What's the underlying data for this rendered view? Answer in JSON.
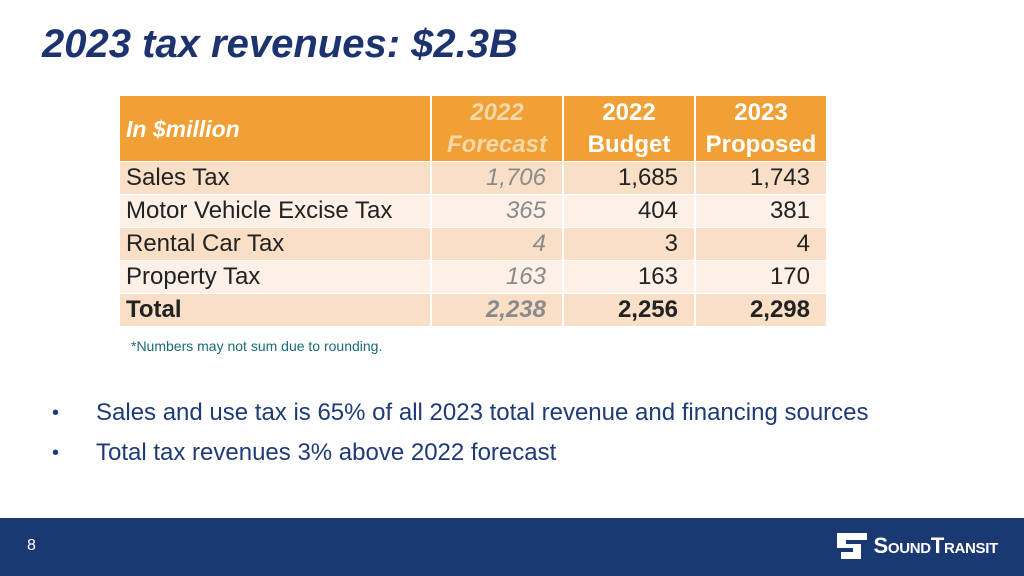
{
  "title": "2023 tax revenues: $2.3B",
  "table": {
    "header": {
      "label": "In $million",
      "col1_line1": "2022",
      "col1_line2": "Forecast",
      "col2_line1": "2022",
      "col2_line2": "Budget",
      "col3_line1": "2023",
      "col3_line2": "Proposed"
    },
    "rows": [
      {
        "name": "Sales Tax",
        "forecast": "1,706",
        "budget": "1,685",
        "proposed": "1,743"
      },
      {
        "name": "Motor Vehicle Excise Tax",
        "forecast": "365",
        "budget": "404",
        "proposed": "381"
      },
      {
        "name": "Rental Car Tax",
        "forecast": "4",
        "budget": "3",
        "proposed": "4"
      },
      {
        "name": "Property Tax",
        "forecast": "163",
        "budget": "163",
        "proposed": "170"
      },
      {
        "name": "Total",
        "forecast": "2,238",
        "budget": "2,256",
        "proposed": "2,298"
      }
    ]
  },
  "footnote": "*Numbers may not sum due to rounding.",
  "bullets": [
    "Sales and use tax is 65% of all 2023 total revenue and financing sources",
    "Total tax revenues 3% above 2022 forecast"
  ],
  "bullet_marker": "•",
  "footer": {
    "page_number": "8",
    "logo_text": "SoundTransit"
  },
  "colors": {
    "title": "#1c3370",
    "header_bg": "#f0a035",
    "footer_bg": "#1a3872"
  }
}
